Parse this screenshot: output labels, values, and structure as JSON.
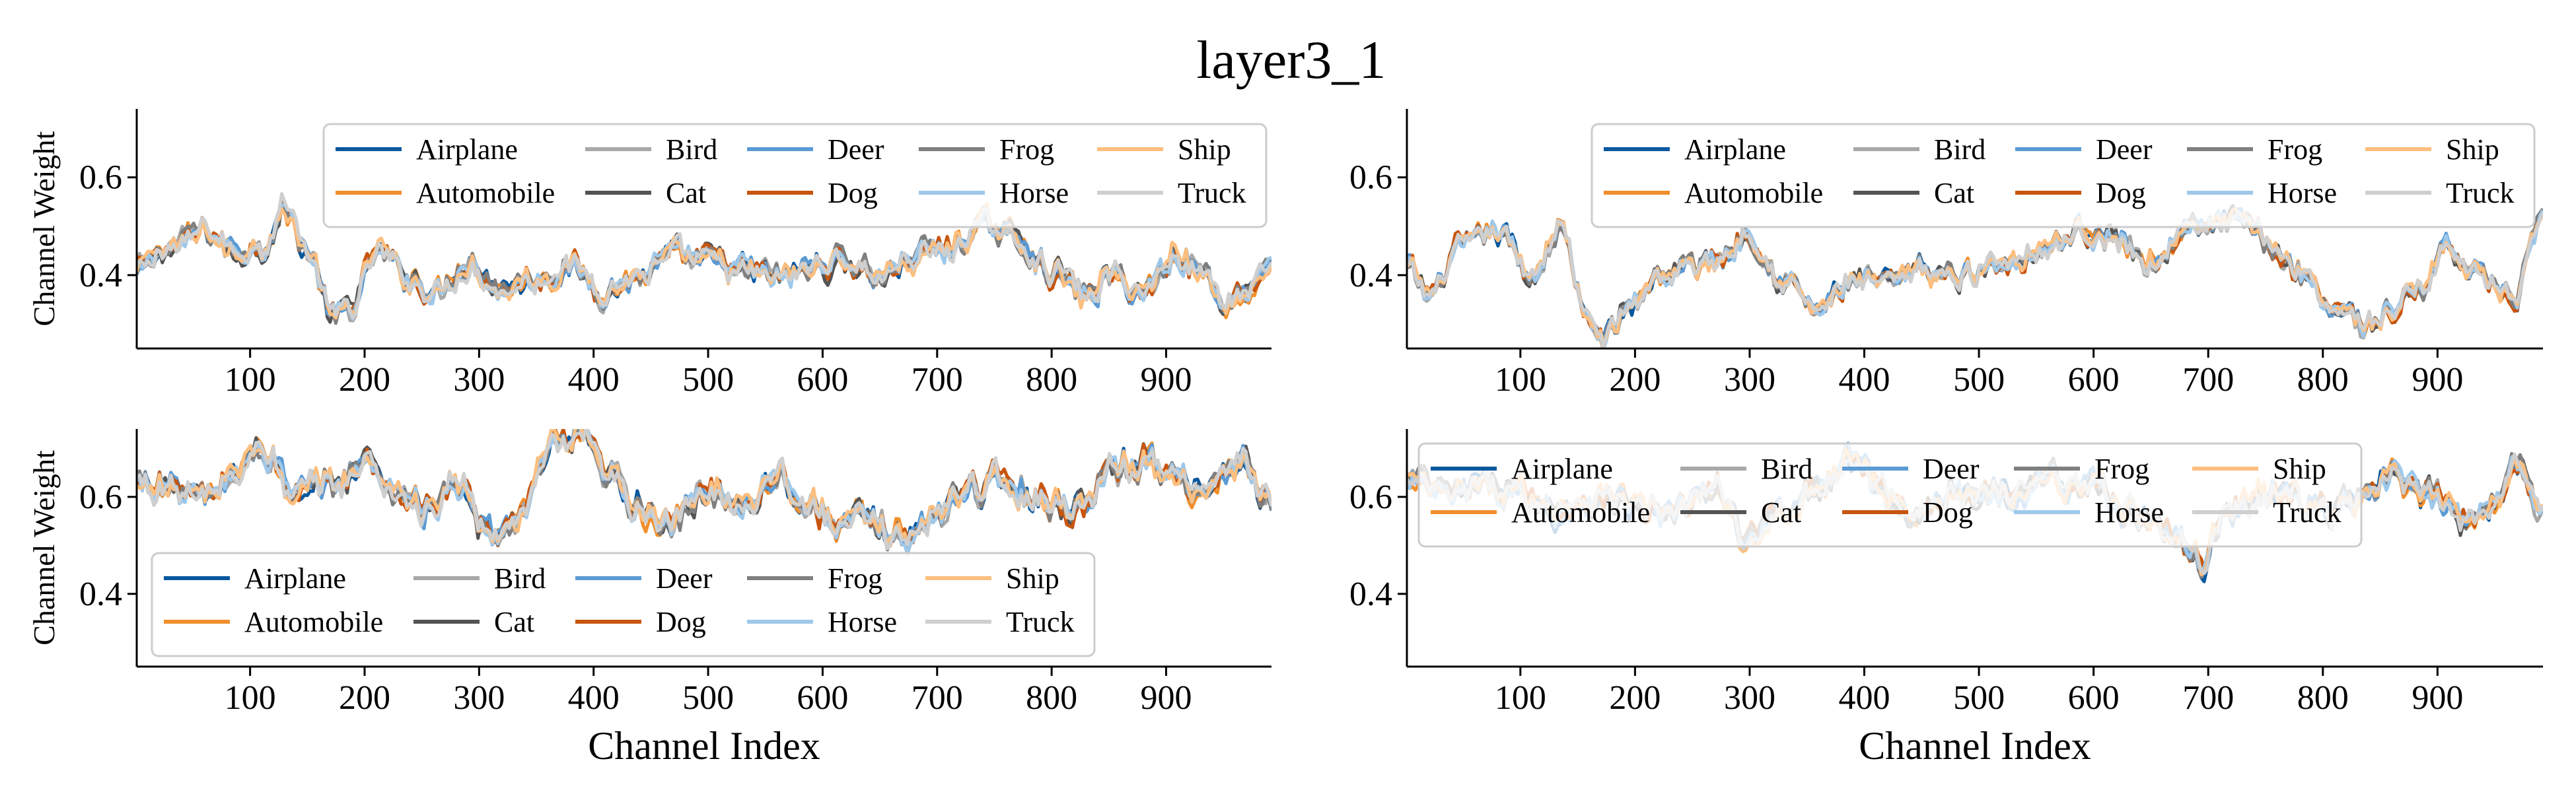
{
  "figure": {
    "title": "layer3_1",
    "series_names": [
      "Airplane",
      "Automobile",
      "Bird",
      "Cat",
      "Deer",
      "Dog",
      "Frog",
      "Horse",
      "Ship",
      "Truck"
    ],
    "series_colors": [
      "#08589e",
      "#f28e2b",
      "#a8a8a8",
      "#545454",
      "#5b9bd5",
      "#c8550e",
      "#7f7f7f",
      "#9ec8ea",
      "#fdbf7f",
      "#cfcfcf"
    ],
    "legend_columns": [
      [
        "Airplane",
        "Automobile"
      ],
      [
        "Bird",
        "Cat"
      ],
      [
        "Deer",
        "Dog"
      ],
      [
        "Frog",
        "Horse"
      ],
      [
        "Ship",
        "Truck"
      ]
    ]
  },
  "chart_data": [
    {
      "type": "line",
      "panel": "top-left",
      "xlabel": "",
      "ylabel": "Channel Weight",
      "xlim": [
        1,
        992
      ],
      "ylim": [
        0.25,
        0.74
      ],
      "xticks": [
        100,
        200,
        300,
        400,
        500,
        600,
        700,
        800,
        900
      ],
      "yticks": [
        0.4,
        0.6
      ],
      "ytick_labels": [
        "0.4",
        "0.6"
      ],
      "legend": "upper-right",
      "profile_points": [
        [
          1,
          0.41
        ],
        [
          30,
          0.46
        ],
        [
          60,
          0.49
        ],
        [
          90,
          0.45
        ],
        [
          110,
          0.47
        ],
        [
          130,
          0.54
        ],
        [
          150,
          0.45
        ],
        [
          175,
          0.31
        ],
        [
          190,
          0.34
        ],
        [
          210,
          0.45
        ],
        [
          240,
          0.4
        ],
        [
          260,
          0.37
        ],
        [
          290,
          0.43
        ],
        [
          320,
          0.38
        ],
        [
          350,
          0.4
        ],
        [
          380,
          0.42
        ],
        [
          410,
          0.37
        ],
        [
          440,
          0.4
        ],
        [
          470,
          0.44
        ],
        [
          500,
          0.43
        ],
        [
          530,
          0.41
        ],
        [
          560,
          0.4
        ],
        [
          590,
          0.42
        ],
        [
          620,
          0.43
        ],
        [
          650,
          0.4
        ],
        [
          680,
          0.44
        ],
        [
          710,
          0.46
        ],
        [
          740,
          0.5
        ],
        [
          770,
          0.48
        ],
        [
          800,
          0.41
        ],
        [
          830,
          0.36
        ],
        [
          850,
          0.4
        ],
        [
          880,
          0.37
        ],
        [
          910,
          0.45
        ],
        [
          930,
          0.41
        ],
        [
          950,
          0.35
        ],
        [
          970,
          0.37
        ],
        [
          992,
          0.44
        ]
      ],
      "noise": 0.018,
      "spread": 0.012
    },
    {
      "type": "line",
      "panel": "top-right",
      "xlabel": "",
      "ylabel": "",
      "xlim": [
        1,
        992
      ],
      "ylim": [
        0.25,
        0.74
      ],
      "xticks": [
        100,
        200,
        300,
        400,
        500,
        600,
        700,
        800,
        900
      ],
      "yticks": [
        0.4,
        0.6
      ],
      "ytick_labels": [
        "0.4",
        "0.6"
      ],
      "legend": "upper-right",
      "profile_points": [
        [
          1,
          0.42
        ],
        [
          20,
          0.36
        ],
        [
          50,
          0.46
        ],
        [
          80,
          0.49
        ],
        [
          110,
          0.4
        ],
        [
          135,
          0.5
        ],
        [
          160,
          0.3
        ],
        [
          175,
          0.27
        ],
        [
          195,
          0.34
        ],
        [
          220,
          0.4
        ],
        [
          250,
          0.42
        ],
        [
          275,
          0.44
        ],
        [
          300,
          0.49
        ],
        [
          330,
          0.39
        ],
        [
          360,
          0.33
        ],
        [
          390,
          0.39
        ],
        [
          420,
          0.38
        ],
        [
          450,
          0.41
        ],
        [
          480,
          0.4
        ],
        [
          520,
          0.43
        ],
        [
          560,
          0.46
        ],
        [
          590,
          0.5
        ],
        [
          620,
          0.47
        ],
        [
          650,
          0.43
        ],
        [
          680,
          0.49
        ],
        [
          720,
          0.51
        ],
        [
          750,
          0.47
        ],
        [
          780,
          0.41
        ],
        [
          810,
          0.34
        ],
        [
          840,
          0.3
        ],
        [
          860,
          0.33
        ],
        [
          880,
          0.37
        ],
        [
          910,
          0.46
        ],
        [
          940,
          0.4
        ],
        [
          965,
          0.35
        ],
        [
          992,
          0.5
        ]
      ],
      "noise": 0.018,
      "spread": 0.01
    },
    {
      "type": "line",
      "panel": "bottom-left",
      "xlabel": "Channel Index",
      "ylabel": "Channel Weight",
      "xlim": [
        1,
        992
      ],
      "ylim": [
        0.25,
        0.74
      ],
      "xticks": [
        100,
        200,
        300,
        400,
        500,
        600,
        700,
        800,
        900
      ],
      "yticks": [
        0.4,
        0.6
      ],
      "ytick_labels": [
        "0.4",
        "0.6"
      ],
      "legend": "lower-left",
      "profile_points": [
        [
          1,
          0.63
        ],
        [
          30,
          0.62
        ],
        [
          60,
          0.6
        ],
        [
          90,
          0.66
        ],
        [
          110,
          0.7
        ],
        [
          140,
          0.6
        ],
        [
          170,
          0.63
        ],
        [
          200,
          0.67
        ],
        [
          230,
          0.61
        ],
        [
          260,
          0.57
        ],
        [
          280,
          0.63
        ],
        [
          310,
          0.51
        ],
        [
          340,
          0.58
        ],
        [
          365,
          0.7
        ],
        [
          390,
          0.72
        ],
        [
          410,
          0.64
        ],
        [
          440,
          0.59
        ],
        [
          470,
          0.54
        ],
        [
          500,
          0.62
        ],
        [
          530,
          0.59
        ],
        [
          560,
          0.65
        ],
        [
          590,
          0.58
        ],
        [
          620,
          0.55
        ],
        [
          650,
          0.54
        ],
        [
          680,
          0.52
        ],
        [
          700,
          0.57
        ],
        [
          730,
          0.63
        ],
        [
          760,
          0.63
        ],
        [
          790,
          0.6
        ],
        [
          820,
          0.58
        ],
        [
          850,
          0.66
        ],
        [
          880,
          0.68
        ],
        [
          910,
          0.64
        ],
        [
          940,
          0.62
        ],
        [
          970,
          0.66
        ],
        [
          992,
          0.6
        ]
      ],
      "noise": 0.022,
      "spread": 0.014
    },
    {
      "type": "line",
      "panel": "bottom-right",
      "xlabel": "Channel Index",
      "ylabel": "",
      "xlim": [
        1,
        992
      ],
      "ylim": [
        0.25,
        0.74
      ],
      "xticks": [
        100,
        200,
        300,
        400,
        500,
        600,
        700,
        800,
        900
      ],
      "yticks": [
        0.4,
        0.6
      ],
      "ytick_labels": [
        "0.4",
        "0.6"
      ],
      "legend": "upper-left",
      "profile_points": [
        [
          1,
          0.63
        ],
        [
          40,
          0.6
        ],
        [
          80,
          0.62
        ],
        [
          130,
          0.58
        ],
        [
          180,
          0.6
        ],
        [
          230,
          0.56
        ],
        [
          270,
          0.62
        ],
        [
          300,
          0.5
        ],
        [
          330,
          0.58
        ],
        [
          360,
          0.63
        ],
        [
          390,
          0.68
        ],
        [
          420,
          0.6
        ],
        [
          450,
          0.57
        ],
        [
          480,
          0.6
        ],
        [
          520,
          0.62
        ],
        [
          560,
          0.64
        ],
        [
          600,
          0.62
        ],
        [
          640,
          0.57
        ],
        [
          670,
          0.52
        ],
        [
          690,
          0.46
        ],
        [
          720,
          0.58
        ],
        [
          760,
          0.61
        ],
        [
          800,
          0.57
        ],
        [
          830,
          0.59
        ],
        [
          860,
          0.64
        ],
        [
          890,
          0.6
        ],
        [
          920,
          0.56
        ],
        [
          950,
          0.6
        ],
        [
          970,
          0.66
        ],
        [
          992,
          0.59
        ]
      ],
      "noise": 0.02,
      "spread": 0.014
    }
  ]
}
